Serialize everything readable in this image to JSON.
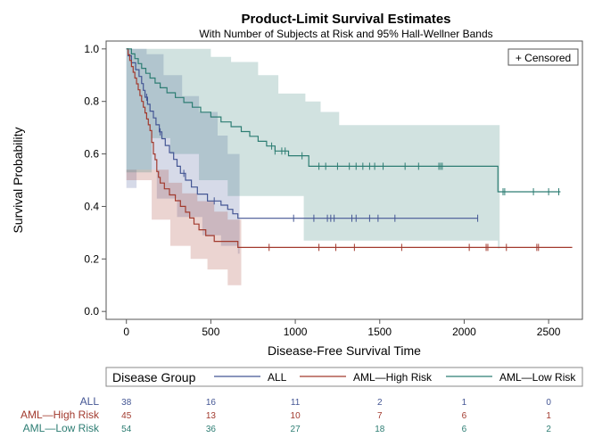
{
  "chart_data": {
    "type": "line",
    "title": "Product-Limit Survival Estimates",
    "subtitle": "With Number of Subjects at Risk and 95% Hall-Wellner Bands",
    "xlabel": "Disease-Free Survival Time",
    "ylabel": "Survival Probability",
    "xlim": [
      -120,
      2700
    ],
    "ylim": [
      -0.03,
      1.03
    ],
    "x_ticks": [
      0,
      500,
      1000,
      1500,
      2000,
      2500
    ],
    "x_tick_labels": [
      "0",
      "500",
      "1000",
      "1500",
      "2000",
      "2500"
    ],
    "y_ticks": [
      0.0,
      0.2,
      0.4,
      0.6,
      0.8,
      1.0
    ],
    "y_tick_labels": [
      "0.0",
      "0.2",
      "0.4",
      "0.6",
      "0.8",
      "1.0"
    ],
    "grid": false,
    "censored_legend": "+ Censored",
    "legend": {
      "title": "Disease Group",
      "placement": "bottom"
    },
    "series": [
      {
        "name": "ALL",
        "color": "#445694",
        "steps": [
          [
            0,
            1.0
          ],
          [
            10,
            0.974
          ],
          [
            30,
            0.947
          ],
          [
            55,
            0.921
          ],
          [
            75,
            0.895
          ],
          [
            90,
            0.868
          ],
          [
            100,
            0.842
          ],
          [
            110,
            0.816
          ],
          [
            125,
            0.789
          ],
          [
            140,
            0.763
          ],
          [
            160,
            0.737
          ],
          [
            175,
            0.711
          ],
          [
            195,
            0.684
          ],
          [
            210,
            0.658
          ],
          [
            230,
            0.632
          ],
          [
            255,
            0.605
          ],
          [
            280,
            0.579
          ],
          [
            300,
            0.553
          ],
          [
            320,
            0.526
          ],
          [
            350,
            0.5
          ],
          [
            385,
            0.474
          ],
          [
            420,
            0.447
          ],
          [
            480,
            0.421
          ],
          [
            560,
            0.405
          ],
          [
            600,
            0.389
          ],
          [
            630,
            0.372
          ],
          [
            660,
            0.355
          ]
        ],
        "end_x": 2080,
        "censored": [
          120,
          200,
          340,
          520,
          990,
          1110,
          1190,
          1210,
          1230,
          1335,
          1360,
          1440,
          1490,
          1590,
          2080
        ],
        "band_lower": [
          [
            0,
            0.47
          ],
          [
            60,
            0.54
          ],
          [
            180,
            0.43
          ],
          [
            300,
            0.36
          ],
          [
            450,
            0.29
          ],
          [
            560,
            0.25
          ],
          [
            660,
            0.22
          ],
          [
            670,
            null
          ]
        ],
        "band_upper": [
          [
            0,
            1.0
          ],
          [
            80,
            1.0
          ],
          [
            120,
            0.98
          ],
          [
            220,
            0.9
          ],
          [
            330,
            0.82
          ],
          [
            430,
            0.76
          ],
          [
            540,
            0.67
          ],
          [
            600,
            0.6
          ],
          [
            670,
            0.6
          ],
          [
            680,
            null
          ]
        ]
      },
      {
        "name": "AML—High Risk",
        "color": "#a23a2e",
        "steps": [
          [
            0,
            1.0
          ],
          [
            10,
            0.978
          ],
          [
            20,
            0.956
          ],
          [
            30,
            0.933
          ],
          [
            40,
            0.911
          ],
          [
            50,
            0.889
          ],
          [
            60,
            0.867
          ],
          [
            70,
            0.844
          ],
          [
            80,
            0.822
          ],
          [
            90,
            0.8
          ],
          [
            100,
            0.778
          ],
          [
            110,
            0.756
          ],
          [
            120,
            0.733
          ],
          [
            130,
            0.711
          ],
          [
            140,
            0.689
          ],
          [
            150,
            0.644
          ],
          [
            160,
            0.6
          ],
          [
            170,
            0.578
          ],
          [
            180,
            0.533
          ],
          [
            190,
            0.511
          ],
          [
            200,
            0.489
          ],
          [
            225,
            0.467
          ],
          [
            255,
            0.444
          ],
          [
            290,
            0.422
          ],
          [
            320,
            0.4
          ],
          [
            350,
            0.378
          ],
          [
            375,
            0.356
          ],
          [
            400,
            0.333
          ],
          [
            430,
            0.311
          ],
          [
            470,
            0.289
          ],
          [
            520,
            0.267
          ],
          [
            660,
            0.244
          ]
        ],
        "end_x": 2640,
        "censored": [
          845,
          1140,
          1240,
          1350,
          1630,
          2030,
          2130,
          2140,
          2250,
          2430,
          2440
        ],
        "band_lower": [
          [
            0,
            0.5
          ],
          [
            150,
            0.35
          ],
          [
            260,
            0.25
          ],
          [
            380,
            0.2
          ],
          [
            480,
            0.16
          ],
          [
            600,
            0.1
          ],
          [
            680,
            null
          ]
        ],
        "band_upper": [
          [
            0,
            0.54
          ],
          [
            160,
            0.54
          ],
          [
            250,
            0.49
          ],
          [
            330,
            0.45
          ],
          [
            420,
            0.42
          ],
          [
            520,
            0.38
          ],
          [
            600,
            0.35
          ],
          [
            680,
            0.35
          ],
          [
            685,
            null
          ]
        ]
      },
      {
        "name": "AML—Low Risk",
        "color": "#2d7d73",
        "steps": [
          [
            0,
            1.0
          ],
          [
            30,
            0.981
          ],
          [
            50,
            0.963
          ],
          [
            70,
            0.944
          ],
          [
            90,
            0.926
          ],
          [
            115,
            0.907
          ],
          [
            140,
            0.889
          ],
          [
            170,
            0.87
          ],
          [
            200,
            0.852
          ],
          [
            240,
            0.833
          ],
          [
            290,
            0.815
          ],
          [
            340,
            0.796
          ],
          [
            390,
            0.778
          ],
          [
            440,
            0.759
          ],
          [
            500,
            0.741
          ],
          [
            560,
            0.722
          ],
          [
            620,
            0.704
          ],
          [
            680,
            0.685
          ],
          [
            730,
            0.667
          ],
          [
            780,
            0.648
          ],
          [
            830,
            0.63
          ],
          [
            880,
            0.611
          ],
          [
            960,
            0.593
          ],
          [
            1080,
            0.553
          ],
          [
            2200,
            0.456
          ]
        ],
        "end_x": 2570,
        "censored": [
          860,
          880,
          920,
          940,
          1040,
          1140,
          1180,
          1250,
          1320,
          1360,
          1400,
          1440,
          1470,
          1520,
          1650,
          1730,
          1850,
          1860,
          1870,
          2230,
          2240,
          2410,
          2500,
          2560
        ],
        "band_lower": [
          [
            0,
            0.53
          ],
          [
            150,
            0.66
          ],
          [
            260,
            0.6
          ],
          [
            430,
            0.5
          ],
          [
            600,
            0.44
          ],
          [
            1050,
            0.27
          ],
          [
            2200,
            0.24
          ],
          [
            2210,
            null
          ]
        ],
        "band_upper": [
          [
            0,
            1.0
          ],
          [
            380,
            1.0
          ],
          [
            500,
            0.97
          ],
          [
            620,
            0.95
          ],
          [
            780,
            0.9
          ],
          [
            900,
            0.83
          ],
          [
            1060,
            0.8
          ],
          [
            1150,
            0.76
          ],
          [
            1260,
            0.71
          ],
          [
            2200,
            0.71
          ],
          [
            2210,
            null
          ]
        ]
      }
    ],
    "at_risk": {
      "x": [
        0,
        500,
        1000,
        1500,
        2000,
        2500
      ],
      "rows": [
        {
          "name": "ALL",
          "counts": [
            "38",
            "16",
            "11",
            "2",
            "1",
            "0"
          ]
        },
        {
          "name": "AML—High Risk",
          "counts": [
            "45",
            "13",
            "10",
            "7",
            "6",
            "1"
          ]
        },
        {
          "name": "AML—Low Risk",
          "counts": [
            "54",
            "36",
            "27",
            "18",
            "6",
            "2"
          ]
        }
      ]
    }
  }
}
